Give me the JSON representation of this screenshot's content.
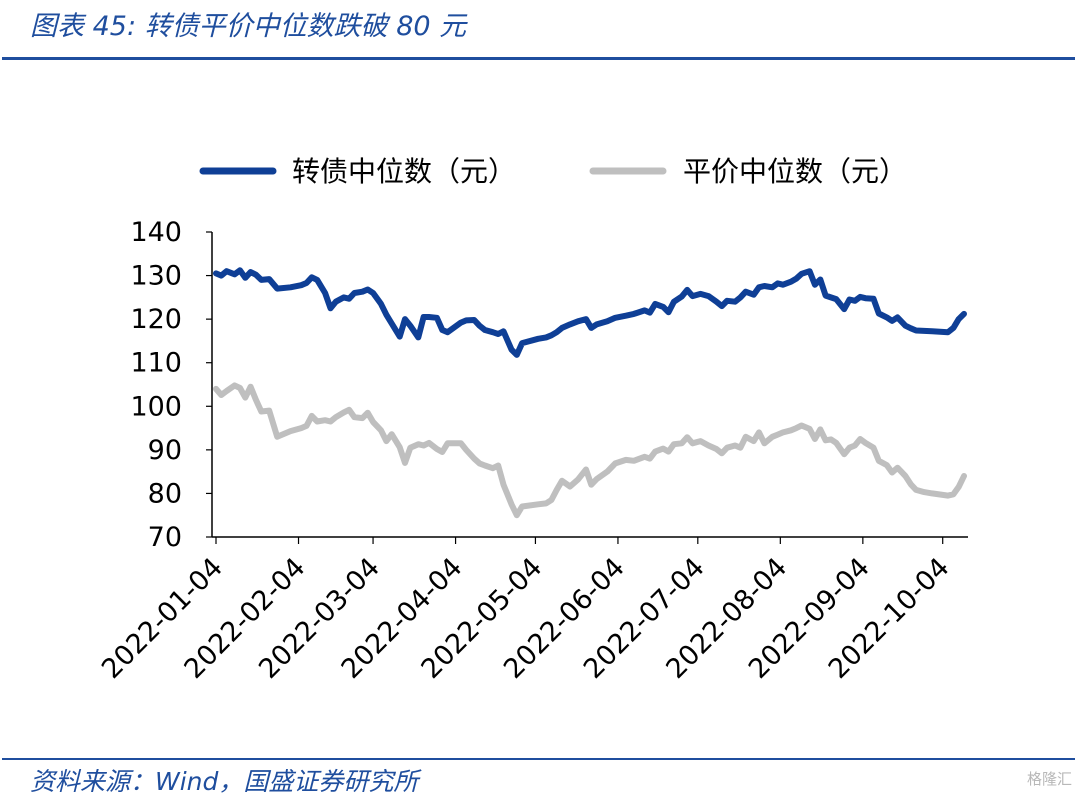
{
  "header": {
    "title": "图表 45:  转债平价中位数跌破 80 元"
  },
  "footer": {
    "source": "资料来源：Wind，国盛证券研究所",
    "watermark": "格隆汇"
  },
  "chart_data": {
    "type": "line",
    "title": "",
    "xlabel": "",
    "ylabel": "",
    "ylim": [
      70,
      140
    ],
    "yticks": [
      "140",
      "130",
      "120",
      "110",
      "100",
      "90",
      "80",
      "70"
    ],
    "xticks": [
      "2022-01-04",
      "2022-02-04",
      "2022-03-04",
      "2022-04-04",
      "2022-05-04",
      "2022-06-04",
      "2022-07-04",
      "2022-08-04",
      "2022-09-04",
      "2022-10-04"
    ],
    "legend_position": "top",
    "grid": false,
    "series": [
      {
        "name": "转债中位数（元）",
        "color": "#0f3f96",
        "points": [
          [
            "2022-01-04",
            130.5
          ],
          [
            "2022-01-06",
            130.0
          ],
          [
            "2022-01-08",
            131.0
          ],
          [
            "2022-01-11",
            130.3
          ],
          [
            "2022-01-13",
            131.2
          ],
          [
            "2022-01-15",
            129.5
          ],
          [
            "2022-01-17",
            130.8
          ],
          [
            "2022-01-19",
            130.2
          ],
          [
            "2022-01-21",
            129.0
          ],
          [
            "2022-01-24",
            129.2
          ],
          [
            "2022-01-27",
            127.0
          ],
          [
            "2022-02-01",
            127.3
          ],
          [
            "2022-02-05",
            127.8
          ],
          [
            "2022-02-07",
            128.3
          ],
          [
            "2022-02-09",
            129.6
          ],
          [
            "2022-02-11",
            129.0
          ],
          [
            "2022-02-14",
            126.0
          ],
          [
            "2022-02-16",
            122.5
          ],
          [
            "2022-02-18",
            124.0
          ],
          [
            "2022-02-21",
            125.0
          ],
          [
            "2022-02-23",
            124.7
          ],
          [
            "2022-02-25",
            126.0
          ],
          [
            "2022-02-28",
            126.3
          ],
          [
            "2022-03-02",
            126.8
          ],
          [
            "2022-03-04",
            126.0
          ],
          [
            "2022-03-07",
            123.5
          ],
          [
            "2022-03-09",
            121.0
          ],
          [
            "2022-03-11",
            119.0
          ],
          [
            "2022-03-14",
            116.0
          ],
          [
            "2022-03-16",
            120.0
          ],
          [
            "2022-03-18",
            118.5
          ],
          [
            "2022-03-21",
            115.8
          ],
          [
            "2022-03-23",
            120.5
          ],
          [
            "2022-03-25",
            120.5
          ],
          [
            "2022-03-28",
            120.3
          ],
          [
            "2022-03-30",
            117.5
          ],
          [
            "2022-04-01",
            117.0
          ],
          [
            "2022-04-06",
            119.2
          ],
          [
            "2022-04-08",
            119.7
          ],
          [
            "2022-04-11",
            119.8
          ],
          [
            "2022-04-13",
            118.5
          ],
          [
            "2022-04-15",
            117.5
          ],
          [
            "2022-04-18",
            117.0
          ],
          [
            "2022-04-20",
            116.6
          ],
          [
            "2022-04-22",
            117.2
          ],
          [
            "2022-04-25",
            113.0
          ],
          [
            "2022-04-27",
            111.8
          ],
          [
            "2022-04-29",
            114.5
          ],
          [
            "2022-05-05",
            115.5
          ],
          [
            "2022-05-08",
            115.8
          ],
          [
            "2022-05-10",
            116.3
          ],
          [
            "2022-05-12",
            117.0
          ],
          [
            "2022-05-14",
            118.0
          ],
          [
            "2022-05-17",
            118.8
          ],
          [
            "2022-05-20",
            119.5
          ],
          [
            "2022-05-23",
            120.0
          ],
          [
            "2022-05-25",
            118.0
          ],
          [
            "2022-05-27",
            118.8
          ],
          [
            "2022-05-31",
            119.5
          ],
          [
            "2022-06-03",
            120.3
          ],
          [
            "2022-06-07",
            120.8
          ],
          [
            "2022-06-10",
            121.2
          ],
          [
            "2022-06-14",
            122.0
          ],
          [
            "2022-06-16",
            121.5
          ],
          [
            "2022-06-18",
            123.5
          ],
          [
            "2022-06-21",
            122.8
          ],
          [
            "2022-06-23",
            121.6
          ],
          [
            "2022-06-25",
            124.0
          ],
          [
            "2022-06-28",
            125.2
          ],
          [
            "2022-06-30",
            126.7
          ],
          [
            "2022-07-02",
            125.3
          ],
          [
            "2022-07-05",
            125.8
          ],
          [
            "2022-07-08",
            125.3
          ],
          [
            "2022-07-11",
            124.0
          ],
          [
            "2022-07-13",
            123.0
          ],
          [
            "2022-07-15",
            124.2
          ],
          [
            "2022-07-18",
            124.0
          ],
          [
            "2022-07-20",
            125.0
          ],
          [
            "2022-07-22",
            126.3
          ],
          [
            "2022-07-25",
            125.6
          ],
          [
            "2022-07-27",
            127.3
          ],
          [
            "2022-07-29",
            127.6
          ],
          [
            "2022-08-01",
            127.3
          ],
          [
            "2022-08-03",
            128.2
          ],
          [
            "2022-08-05",
            127.9
          ],
          [
            "2022-08-08",
            128.6
          ],
          [
            "2022-08-10",
            129.3
          ],
          [
            "2022-08-12",
            130.4
          ],
          [
            "2022-08-15",
            131.0
          ],
          [
            "2022-08-17",
            127.9
          ],
          [
            "2022-08-19",
            129.1
          ],
          [
            "2022-08-21",
            125.4
          ],
          [
            "2022-08-23",
            125.0
          ],
          [
            "2022-08-25",
            124.6
          ],
          [
            "2022-08-28",
            122.3
          ],
          [
            "2022-08-30",
            124.5
          ],
          [
            "2022-09-01",
            124.2
          ],
          [
            "2022-09-03",
            125.1
          ],
          [
            "2022-09-05",
            124.8
          ],
          [
            "2022-09-08",
            124.7
          ],
          [
            "2022-09-10",
            121.3
          ],
          [
            "2022-09-13",
            120.4
          ],
          [
            "2022-09-15",
            119.6
          ],
          [
            "2022-09-17",
            120.4
          ],
          [
            "2022-09-20",
            118.5
          ],
          [
            "2022-09-22",
            117.9
          ],
          [
            "2022-09-24",
            117.4
          ],
          [
            "2022-09-27",
            117.3
          ],
          [
            "2022-09-30",
            117.2
          ],
          [
            "2022-10-06",
            117.0
          ],
          [
            "2022-10-08",
            118.0
          ],
          [
            "2022-10-10",
            120.0
          ],
          [
            "2022-10-12",
            121.2
          ]
        ]
      },
      {
        "name": "平价中位数（元）",
        "color": "#bfbfbf",
        "points": [
          [
            "2022-01-04",
            104.0
          ],
          [
            "2022-01-06",
            102.6
          ],
          [
            "2022-01-08",
            103.5
          ],
          [
            "2022-01-11",
            104.8
          ],
          [
            "2022-01-13",
            104.2
          ],
          [
            "2022-01-15",
            102.0
          ],
          [
            "2022-01-17",
            104.5
          ],
          [
            "2022-01-19",
            101.5
          ],
          [
            "2022-01-21",
            98.8
          ],
          [
            "2022-01-24",
            99.0
          ],
          [
            "2022-01-27",
            93.0
          ],
          [
            "2022-02-01",
            94.3
          ],
          [
            "2022-02-05",
            95.0
          ],
          [
            "2022-02-07",
            95.5
          ],
          [
            "2022-02-09",
            97.8
          ],
          [
            "2022-02-11",
            96.5
          ],
          [
            "2022-02-14",
            96.8
          ],
          [
            "2022-02-16",
            96.5
          ],
          [
            "2022-02-18",
            97.5
          ],
          [
            "2022-02-21",
            98.6
          ],
          [
            "2022-02-23",
            99.2
          ],
          [
            "2022-02-25",
            97.5
          ],
          [
            "2022-02-28",
            97.3
          ],
          [
            "2022-03-02",
            98.5
          ],
          [
            "2022-03-04",
            96.4
          ],
          [
            "2022-03-07",
            94.5
          ],
          [
            "2022-03-09",
            92.0
          ],
          [
            "2022-03-11",
            93.6
          ],
          [
            "2022-03-14",
            90.6
          ],
          [
            "2022-03-16",
            87.0
          ],
          [
            "2022-03-18",
            90.5
          ],
          [
            "2022-03-21",
            91.3
          ],
          [
            "2022-03-23",
            91.0
          ],
          [
            "2022-03-25",
            91.6
          ],
          [
            "2022-03-28",
            90.2
          ],
          [
            "2022-03-30",
            89.5
          ],
          [
            "2022-04-01",
            91.5
          ],
          [
            "2022-04-06",
            91.5
          ],
          [
            "2022-04-08",
            90.0
          ],
          [
            "2022-04-11",
            88.0
          ],
          [
            "2022-04-13",
            86.9
          ],
          [
            "2022-04-15",
            86.4
          ],
          [
            "2022-04-18",
            85.8
          ],
          [
            "2022-04-20",
            86.4
          ],
          [
            "2022-04-22",
            82.0
          ],
          [
            "2022-04-25",
            77.5
          ],
          [
            "2022-04-27",
            75.0
          ],
          [
            "2022-04-29",
            77.0
          ],
          [
            "2022-05-05",
            77.5
          ],
          [
            "2022-05-08",
            77.7
          ],
          [
            "2022-05-10",
            78.5
          ],
          [
            "2022-05-12",
            80.8
          ],
          [
            "2022-05-14",
            82.9
          ],
          [
            "2022-05-17",
            81.6
          ],
          [
            "2022-05-20",
            83.2
          ],
          [
            "2022-05-23",
            85.5
          ],
          [
            "2022-05-25",
            82.0
          ],
          [
            "2022-05-27",
            83.3
          ],
          [
            "2022-05-31",
            85.0
          ],
          [
            "2022-06-03",
            86.9
          ],
          [
            "2022-06-07",
            87.7
          ],
          [
            "2022-06-10",
            87.5
          ],
          [
            "2022-06-14",
            88.4
          ],
          [
            "2022-06-16",
            88.0
          ],
          [
            "2022-06-18",
            89.6
          ],
          [
            "2022-06-21",
            90.3
          ],
          [
            "2022-06-23",
            89.6
          ],
          [
            "2022-06-25",
            91.3
          ],
          [
            "2022-06-28",
            91.5
          ],
          [
            "2022-06-30",
            92.9
          ],
          [
            "2022-07-02",
            91.5
          ],
          [
            "2022-07-05",
            92.0
          ],
          [
            "2022-07-08",
            91.0
          ],
          [
            "2022-07-11",
            90.2
          ],
          [
            "2022-07-13",
            89.2
          ],
          [
            "2022-07-15",
            90.5
          ],
          [
            "2022-07-18",
            91.0
          ],
          [
            "2022-07-20",
            90.5
          ],
          [
            "2022-07-22",
            93.0
          ],
          [
            "2022-07-25",
            92.0
          ],
          [
            "2022-07-27",
            94.0
          ],
          [
            "2022-07-29",
            91.5
          ],
          [
            "2022-08-01",
            93.0
          ],
          [
            "2022-08-03",
            93.5
          ],
          [
            "2022-08-05",
            94.0
          ],
          [
            "2022-08-08",
            94.5
          ],
          [
            "2022-08-10",
            95.0
          ],
          [
            "2022-08-12",
            95.6
          ],
          [
            "2022-08-15",
            94.8
          ],
          [
            "2022-08-17",
            92.5
          ],
          [
            "2022-08-19",
            94.7
          ],
          [
            "2022-08-21",
            92.2
          ],
          [
            "2022-08-23",
            92.4
          ],
          [
            "2022-08-25",
            91.6
          ],
          [
            "2022-08-28",
            89.0
          ],
          [
            "2022-08-30",
            90.5
          ],
          [
            "2022-09-01",
            91.0
          ],
          [
            "2022-09-03",
            92.5
          ],
          [
            "2022-09-05",
            91.6
          ],
          [
            "2022-09-08",
            90.5
          ],
          [
            "2022-09-10",
            87.5
          ],
          [
            "2022-09-13",
            86.5
          ],
          [
            "2022-09-15",
            84.8
          ],
          [
            "2022-09-17",
            85.9
          ],
          [
            "2022-09-20",
            84.0
          ],
          [
            "2022-09-22",
            82.1
          ],
          [
            "2022-09-24",
            80.8
          ],
          [
            "2022-09-27",
            80.3
          ],
          [
            "2022-09-30",
            80.0
          ],
          [
            "2022-10-06",
            79.5
          ],
          [
            "2022-10-08",
            79.8
          ],
          [
            "2022-10-10",
            81.5
          ],
          [
            "2022-10-12",
            84.0
          ]
        ]
      }
    ]
  }
}
